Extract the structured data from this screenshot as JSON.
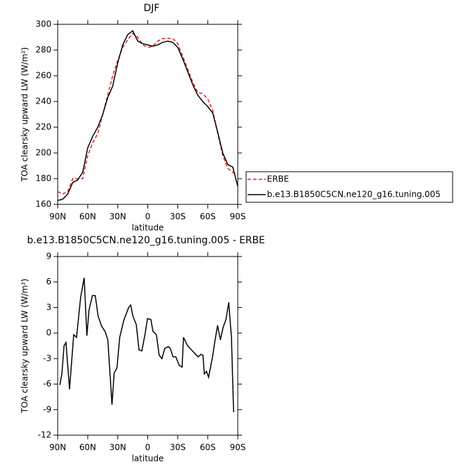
{
  "chart_data": [
    {
      "type": "line",
      "title": "DJF",
      "xlabel": "latitude",
      "ylabel": "TOA clearsky upward LW (W/m²)",
      "x": [
        90,
        85,
        80,
        75,
        70,
        65,
        60,
        55,
        50,
        45,
        40,
        35,
        30,
        25,
        20,
        15,
        10,
        5,
        0,
        -5,
        -10,
        -15,
        -20,
        -25,
        -30,
        -35,
        -40,
        -45,
        -50,
        -55,
        -60,
        -65,
        -70,
        -75,
        -80,
        -85,
        -90
      ],
      "series": [
        {
          "name": "ERBE",
          "color": "#e02020",
          "style": "dashed",
          "values": [
            170,
            168,
            170,
            180,
            180,
            180,
            198,
            208,
            215,
            230,
            245,
            260,
            272,
            282,
            288,
            293,
            290,
            284,
            282,
            283,
            287,
            289,
            289,
            289,
            285,
            275,
            265,
            255,
            247,
            246,
            242,
            233,
            215,
            198,
            188,
            185,
            183
          ]
        },
        {
          "name": "b.e13.B1850C5CN.ne120_g16.tuning.005",
          "color": "#000000",
          "style": "solid",
          "values": [
            163,
            164,
            168,
            177,
            179,
            185,
            204,
            213,
            220,
            230,
            243,
            252,
            270,
            284,
            292,
            295,
            287,
            285,
            284,
            283,
            284,
            286,
            287,
            286,
            282,
            273,
            263,
            253,
            245,
            240,
            236,
            231,
            216,
            200,
            191,
            189,
            174
          ]
        }
      ],
      "xlim": [
        90,
        -90
      ],
      "xticks": [
        {
          "value": 90,
          "label": "90N"
        },
        {
          "value": 60,
          "label": "60N"
        },
        {
          "value": 30,
          "label": "30N"
        },
        0,
        {
          "value": -30,
          "label": "30S"
        },
        {
          "value": -60,
          "label": "60S"
        },
        {
          "value": -90,
          "label": "90S"
        }
      ],
      "ylim": [
        160,
        300
      ],
      "yticks": [
        160,
        180,
        200,
        220,
        240,
        260,
        280,
        300
      ],
      "legend": "right"
    },
    {
      "type": "line",
      "title": "b.e13.B1850C5CN.ne120_g16.tuning.005 - ERBE",
      "xlabel": "latitude",
      "ylabel": "TOA clearsky upward LW (W/m²)",
      "x": [
        87.9,
        85.8,
        83.7,
        81.7,
        78.2,
        74.0,
        71.2,
        67.1,
        63.6,
        60.8,
        58.7,
        55.3,
        52.5,
        49.6,
        46.1,
        42.7,
        39.9,
        35.7,
        33.6,
        30.8,
        28.0,
        24.0,
        19.1,
        17.0,
        14.9,
        11.5,
        8.7,
        5.9,
        2.5,
        0.3,
        -3.1,
        -5.2,
        -8.7,
        -11.4,
        -14.2,
        -17.0,
        -20.5,
        -22.5,
        -25.3,
        -28.1,
        -31.5,
        -34.3,
        -35.7,
        -39.9,
        -45.5,
        -50.3,
        -53.1,
        -55.2,
        -56.6,
        -58.7,
        -60.8,
        -64.9,
        -67.1,
        -69.8,
        -72.6,
        -75.4,
        -78.2,
        -81.0,
        -83.7,
        -85.8
      ],
      "series": [
        {
          "color": "#000000",
          "style": "solid",
          "values": [
            -6.1,
            -4.8,
            -1.5,
            -1.1,
            -6.6,
            -0.2,
            -0.5,
            4.2,
            6.5,
            -0.3,
            2.7,
            4.4,
            4.4,
            2,
            0.8,
            0.2,
            -0.8,
            -8.4,
            -4.7,
            -4.1,
            -0.5,
            1.5,
            3,
            3.3,
            2,
            1,
            -2,
            -2.1,
            0,
            1.7,
            1.6,
            0.2,
            -0.2,
            -2.6,
            -3,
            -1.8,
            -1.6,
            -1.8,
            -2.8,
            -2.8,
            -3.8,
            -4,
            -0.5,
            -1.5,
            -2.2,
            -2.8,
            -2.5,
            -2.6,
            -4.8,
            -4.5,
            -5.2,
            -2.7,
            -1,
            0.9,
            -0.8,
            0.7,
            1.6,
            3.6,
            -0.5,
            -9.3
          ]
        }
      ],
      "xlim": [
        90,
        -90
      ],
      "xticks": [
        {
          "value": 90,
          "label": "90N"
        },
        {
          "value": 60,
          "label": "60N"
        },
        {
          "value": 30,
          "label": "30N"
        },
        0,
        {
          "value": -30,
          "label": "30S"
        },
        {
          "value": -60,
          "label": "60S"
        },
        {
          "value": -90,
          "label": "90S"
        }
      ],
      "ylim": [
        -12,
        9
      ],
      "yticks": [
        -12,
        -9,
        -6,
        -3,
        0,
        3,
        6,
        9
      ]
    }
  ]
}
